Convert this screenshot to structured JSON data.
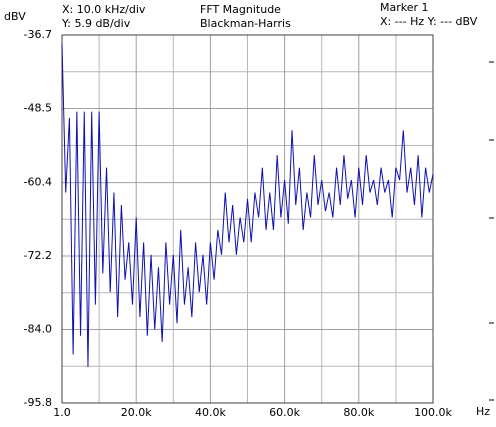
{
  "chart_data": {
    "type": "line",
    "y_unit": "dBV",
    "x_unit": "Hz",
    "x_scale": "X: 10.0 kHz/div",
    "y_scale": "Y: 5.9 dB/div",
    "title": "FFT Magnitude",
    "subtitle": "Blackman-Harris",
    "marker_title": "Marker 1",
    "marker_readout": "X: --- Hz Y: --- dBV",
    "color": "#1010b0",
    "grid": true,
    "xlim": [
      1,
      100000
    ],
    "ylim": [
      -95.8,
      -36.7
    ],
    "xticks": [
      {
        "value": 1,
        "label": "1.0"
      },
      {
        "value": 20000,
        "label": "20.0k"
      },
      {
        "value": 40000,
        "label": "40.0k"
      },
      {
        "value": 60000,
        "label": "60.0k"
      },
      {
        "value": 80000,
        "label": "80.0k"
      },
      {
        "value": 100000,
        "label": "100.0k"
      }
    ],
    "yticks": [
      -36.7,
      -48.5,
      -60.4,
      -72.2,
      {
        "value": -84,
        "label": "-84.0"
      },
      -95.8
    ],
    "x": [
      1,
      1000,
      2000,
      3000,
      4000,
      5000,
      6000,
      7000,
      8000,
      9000,
      10000,
      11000,
      12000,
      13000,
      14000,
      15000,
      16000,
      17000,
      18000,
      19000,
      20000,
      21000,
      22000,
      23000,
      24000,
      25000,
      26000,
      27000,
      28000,
      29000,
      30000,
      31000,
      32000,
      33000,
      34000,
      35000,
      36000,
      37000,
      38000,
      39000,
      40000,
      41000,
      42000,
      43000,
      44000,
      45000,
      46000,
      47000,
      48000,
      49000,
      50000,
      51000,
      52000,
      53000,
      54000,
      55000,
      56000,
      57000,
      58000,
      59000,
      60000,
      61000,
      62000,
      63000,
      64000,
      65000,
      66000,
      67000,
      68000,
      69000,
      70000,
      71000,
      72000,
      73000,
      74000,
      75000,
      76000,
      77000,
      78000,
      79000,
      80000,
      81000,
      82000,
      83000,
      84000,
      85000,
      86000,
      87000,
      88000,
      89000,
      90000,
      91000,
      92000,
      93000,
      94000,
      95000,
      96000,
      97000,
      98000,
      99000,
      100000
    ],
    "values": [
      -38,
      -62,
      -50,
      -88,
      -49,
      -85,
      -49,
      -90,
      -49,
      -80,
      -49,
      -75,
      -58,
      -78,
      -62,
      -82,
      -64,
      -76,
      -70,
      -80,
      -66,
      -82,
      -70,
      -85,
      -72,
      -84,
      -74,
      -86,
      -70,
      -80,
      -72,
      -83,
      -68,
      -80,
      -74,
      -82,
      -70,
      -78,
      -72,
      -80,
      -70,
      -76,
      -68,
      -72,
      -62,
      -70,
      -64,
      -72,
      -66,
      -70,
      -63,
      -70,
      -62,
      -66,
      -58,
      -68,
      -62,
      -68,
      -56,
      -66,
      -60,
      -67,
      -52,
      -64,
      -58,
      -68,
      -62,
      -66,
      -56,
      -64,
      -60,
      -65,
      -62,
      -66,
      -58,
      -64,
      -56,
      -63,
      -60,
      -66,
      -58,
      -64,
      -56,
      -62,
      -60,
      -64,
      -58,
      -62,
      -60,
      -66,
      -58,
      -60,
      -52,
      -62,
      -58,
      -64,
      -56,
      -66,
      -58,
      -62,
      -59
    ]
  }
}
